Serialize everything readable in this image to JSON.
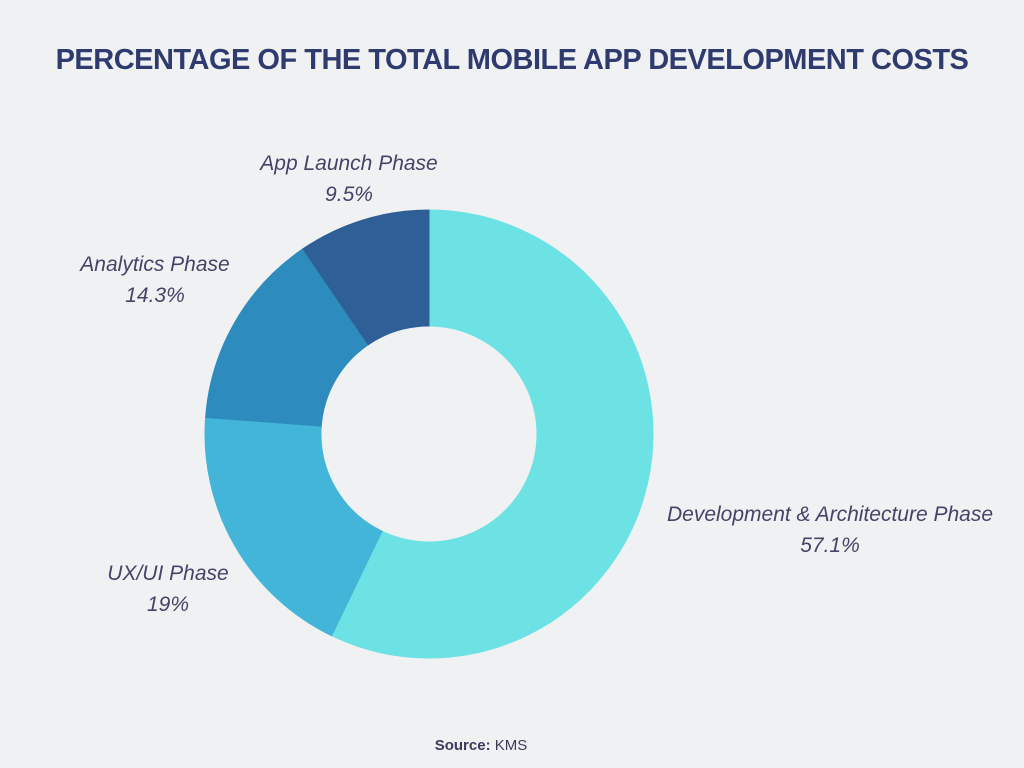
{
  "title": "PERCENTAGE OF THE TOTAL MOBILE APP DEVELOPMENT COSTS",
  "source": {
    "prefix": "Source:",
    "value": "KMS"
  },
  "colors": {
    "background": "#f0f1f2",
    "title_text": "#2f3a6e",
    "label_text": "#454368"
  },
  "chart_data": {
    "type": "pie",
    "title": "PERCENTAGE OF THE TOTAL MOBILE APP DEVELOPMENT COSTS",
    "donut": true,
    "inner_radius_ratio": 0.48,
    "start_angle_deg": 0,
    "direction": "clockwise",
    "legend": "none",
    "labels_position": "outside",
    "segments": [
      {
        "label": "Development & Architecture Phase",
        "value": 57.1,
        "display": "57.1%",
        "color": "#6de2e5"
      },
      {
        "label": "UX/UI Phase",
        "value": 19,
        "display": "19%",
        "color": "#42b5d8"
      },
      {
        "label": "Analytics Phase",
        "value": 14.3,
        "display": "14.3%",
        "color": "#2d8bbd"
      },
      {
        "label": "App Launch Phase",
        "value": 9.5,
        "display": "9.5%",
        "color": "#2e5f96"
      }
    ]
  }
}
